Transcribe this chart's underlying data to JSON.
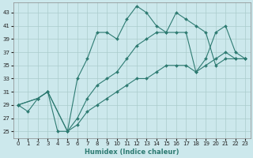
{
  "xlabel": "Humidex (Indice chaleur)",
  "bg_color": "#cce8ec",
  "grid_color": "#aacccc",
  "line_color": "#2e7b72",
  "xlim": [
    -0.5,
    23.5
  ],
  "ylim": [
    24,
    44.5
  ],
  "xticks": [
    0,
    1,
    2,
    3,
    4,
    5,
    6,
    7,
    8,
    9,
    10,
    11,
    12,
    13,
    14,
    15,
    16,
    17,
    18,
    19,
    20,
    21,
    22,
    23
  ],
  "yticks": [
    25,
    27,
    29,
    31,
    33,
    35,
    37,
    39,
    41,
    43
  ],
  "s1_x": [
    0,
    1,
    2,
    3,
    4,
    5,
    6,
    7,
    8,
    9,
    10,
    11,
    12,
    13,
    14,
    15,
    16,
    17,
    18,
    19,
    20,
    21,
    22,
    23
  ],
  "s1_y": [
    29,
    28,
    30,
    31,
    25,
    25,
    33,
    36,
    40,
    40,
    39,
    42,
    44,
    43,
    41,
    40,
    43,
    42,
    41,
    40,
    35,
    36,
    36,
    36
  ],
  "s2_x": [
    0,
    2,
    3,
    5,
    6,
    7,
    8,
    9,
    10,
    11,
    12,
    13,
    14,
    15,
    16,
    17,
    18,
    19,
    20,
    21,
    22,
    23
  ],
  "s2_y": [
    29,
    30,
    31,
    25,
    27,
    30,
    32,
    33,
    34,
    36,
    38,
    39,
    40,
    40,
    40,
    40,
    34,
    36,
    40,
    41,
    37,
    36
  ],
  "s3_x": [
    0,
    2,
    3,
    5,
    6,
    7,
    8,
    9,
    10,
    11,
    12,
    13,
    14,
    15,
    16,
    17,
    18,
    19,
    20,
    21,
    22,
    23
  ],
  "s3_y": [
    29,
    30,
    31,
    25,
    26,
    28,
    29,
    30,
    31,
    32,
    33,
    33,
    34,
    35,
    35,
    35,
    34,
    35,
    36,
    37,
    36,
    36
  ]
}
